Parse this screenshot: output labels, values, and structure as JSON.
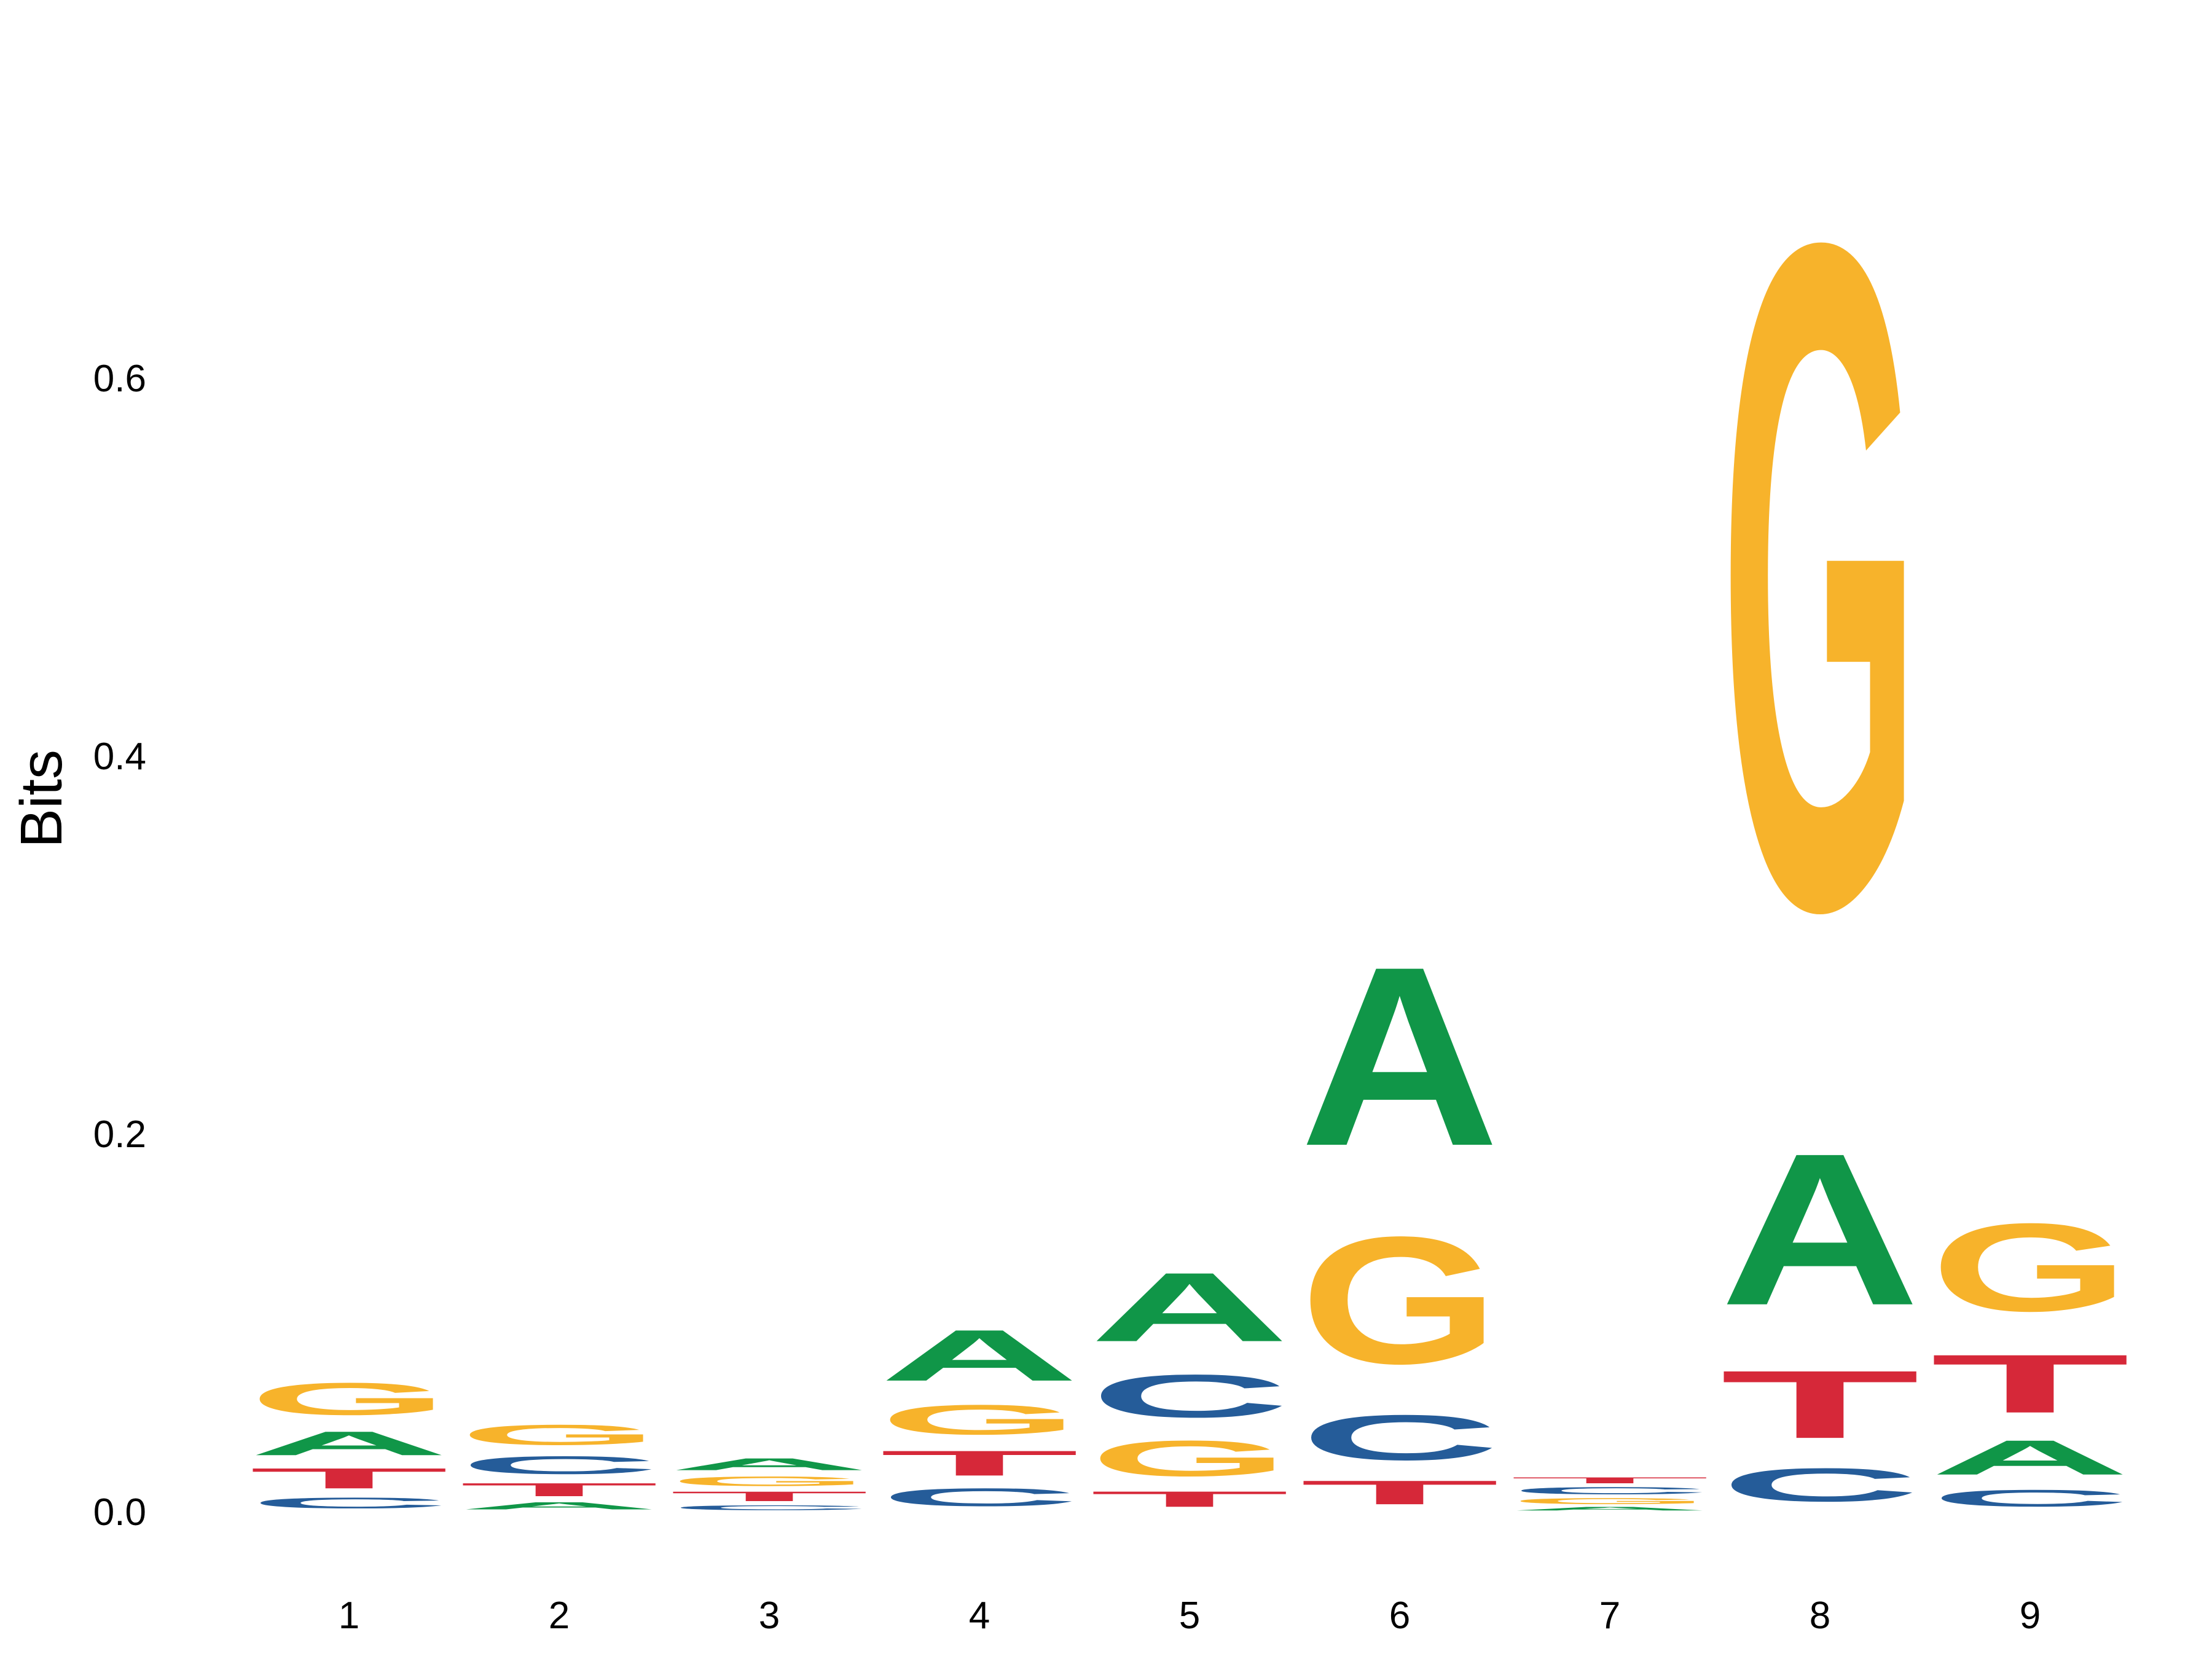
{
  "chart_data": {
    "type": "sequence-logo",
    "ylabel": "Bits",
    "ylim": [
      0,
      0.8
    ],
    "yticks": [
      "0.0",
      "0.2",
      "0.4",
      "0.6"
    ],
    "positions": [
      "1",
      "2",
      "3",
      "4",
      "5",
      "6",
      "7",
      "8",
      "9"
    ],
    "colors": {
      "A": "#109648",
      "C": "#255C99",
      "G": "#F7B32B",
      "T": "#D62839"
    },
    "stacks": [
      [
        {
          "letter": "C",
          "height": 0.009
        },
        {
          "letter": "T",
          "height": 0.017
        },
        {
          "letter": "A",
          "height": 0.02
        },
        {
          "letter": "G",
          "height": 0.027
        }
      ],
      [
        {
          "letter": "A",
          "height": 0.006
        },
        {
          "letter": "T",
          "height": 0.011
        },
        {
          "letter": "C",
          "height": 0.015
        },
        {
          "letter": "G",
          "height": 0.017
        }
      ],
      [
        {
          "letter": "C",
          "height": 0.004
        },
        {
          "letter": "T",
          "height": 0.008
        },
        {
          "letter": "G",
          "height": 0.008
        },
        {
          "letter": "A",
          "height": 0.01
        }
      ],
      [
        {
          "letter": "C",
          "height": 0.015
        },
        {
          "letter": "T",
          "height": 0.021
        },
        {
          "letter": "G",
          "height": 0.025
        },
        {
          "letter": "A",
          "height": 0.043
        }
      ],
      [
        {
          "letter": "T",
          "height": 0.013
        },
        {
          "letter": "G",
          "height": 0.03
        },
        {
          "letter": "C",
          "height": 0.036
        },
        {
          "letter": "A",
          "height": 0.058
        }
      ],
      [
        {
          "letter": "T",
          "height": 0.02
        },
        {
          "letter": "C",
          "height": 0.038
        },
        {
          "letter": "G",
          "height": 0.107
        },
        {
          "letter": "A",
          "height": 0.151
        }
      ],
      [
        {
          "letter": "A",
          "height": 0.003
        },
        {
          "letter": "G",
          "height": 0.005
        },
        {
          "letter": "C",
          "height": 0.006
        },
        {
          "letter": "T",
          "height": 0.005
        }
      ],
      [
        {
          "letter": "C",
          "height": 0.028
        },
        {
          "letter": "T",
          "height": 0.057
        },
        {
          "letter": "A",
          "height": 0.128
        },
        {
          "letter": "G",
          "height": 0.56
        }
      ],
      [
        {
          "letter": "C",
          "height": 0.014
        },
        {
          "letter": "A",
          "height": 0.029
        },
        {
          "letter": "T",
          "height": 0.049
        },
        {
          "letter": "G",
          "height": 0.074
        }
      ]
    ]
  }
}
